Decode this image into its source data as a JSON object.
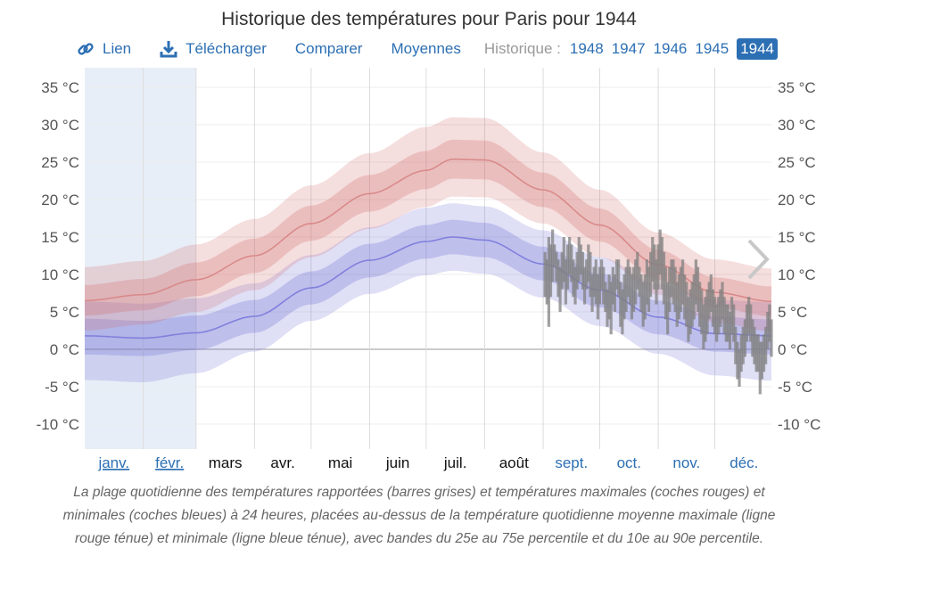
{
  "title": "Historique des températures pour Paris pour 1944",
  "toolbar": {
    "link_label": "Lien",
    "download_label": "Télécharger",
    "compare_label": "Comparer",
    "averages_label": "Moyennes",
    "history_label": "Historique :",
    "years": [
      "1948",
      "1947",
      "1946",
      "1945",
      "1944"
    ],
    "active_year": "1944"
  },
  "caption": "La plage quotidienne des températures rapportées (barres grises) et températures maximales (coches rouges) et minimales (coches bleues) à 24 heures, placées au-dessus de la température quotidienne moyenne maximale (ligne rouge ténue) et minimale (ligne bleue ténue), avec bandes du 25e au 75e percentile et du 10e au 90e percentile.",
  "colors": {
    "accent": "#2c6fb3",
    "high": "#d26b6b",
    "low": "#6c6cd4",
    "bar": "#808080",
    "winter_shade": "#e8eef7"
  },
  "chart_data": {
    "type": "area",
    "ylim": [
      -10,
      35
    ],
    "yticks": [
      35,
      30,
      25,
      20,
      15,
      10,
      5,
      0,
      -5,
      -10
    ],
    "y_unit": "°C",
    "months": [
      "janv.",
      "févr.",
      "mars",
      "avr.",
      "mai",
      "juin",
      "juil.",
      "août",
      "sept.",
      "oct.",
      "nov.",
      "déc."
    ],
    "month_links": [
      true,
      true,
      false,
      false,
      false,
      false,
      false,
      false,
      true,
      true,
      true,
      true
    ],
    "shaded_months": [
      "janv.",
      "févr."
    ],
    "normals_day": [
      1,
      32,
      60,
      91,
      121,
      152,
      182,
      196,
      213,
      244,
      274,
      305,
      335,
      365
    ],
    "high_avg": [
      6.5,
      7.3,
      9.3,
      12.5,
      16.8,
      20.8,
      23.9,
      25.4,
      25.3,
      21.3,
      16.6,
      11.3,
      7.6,
      6.4
    ],
    "high_p25": [
      4.5,
      5.2,
      7.1,
      10.2,
      14.5,
      18.4,
      21.4,
      22.8,
      22.7,
      19.0,
      14.4,
      9.3,
      5.6,
      4.4
    ],
    "high_p75": [
      8.6,
      9.4,
      11.6,
      14.8,
      19.2,
      23.3,
      26.5,
      28.0,
      27.9,
      23.6,
      18.8,
      13.3,
      9.6,
      8.4
    ],
    "high_p10": [
      2.5,
      3.3,
      5.0,
      7.9,
      12.3,
      16.1,
      19.0,
      20.4,
      20.3,
      16.8,
      12.3,
      7.3,
      3.6,
      2.4
    ],
    "high_p90": [
      11.0,
      11.8,
      14.0,
      17.4,
      21.9,
      26.2,
      29.7,
      31.0,
      30.9,
      26.3,
      21.3,
      15.6,
      12.0,
      10.8
    ],
    "low_avg": [
      1.8,
      1.5,
      2.2,
      4.4,
      8.2,
      11.9,
      14.4,
      15.0,
      14.6,
      11.4,
      7.9,
      4.3,
      2.1,
      1.8
    ],
    "low_p25": [
      -0.7,
      -0.9,
      -0.1,
      2.2,
      6.0,
      9.6,
      12.1,
      12.7,
      12.3,
      9.2,
      5.6,
      2.0,
      -0.3,
      -0.7
    ],
    "low_p75": [
      4.1,
      3.8,
      4.5,
      6.6,
      10.4,
      14.1,
      16.6,
      17.3,
      16.9,
      13.7,
      10.1,
      6.5,
      4.4,
      4.0
    ],
    "low_p10": [
      -4.1,
      -4.4,
      -3.2,
      -0.3,
      3.8,
      7.4,
      9.9,
      10.5,
      10.1,
      6.9,
      3.1,
      -0.6,
      -3.5,
      -4.2
    ],
    "low_p90": [
      6.4,
      6.1,
      6.8,
      8.8,
      12.6,
      16.3,
      18.9,
      19.5,
      19.1,
      15.9,
      12.3,
      8.7,
      6.6,
      6.3
    ],
    "daily_start_day": 245,
    "daily_low": [
      7,
      6,
      3,
      7,
      9,
      11,
      9,
      7,
      5,
      8,
      9,
      6,
      8,
      10,
      9,
      7,
      6,
      8,
      9,
      10,
      8,
      6,
      8,
      9,
      7,
      5,
      7,
      6,
      4,
      6,
      8,
      6,
      5,
      3,
      4,
      2,
      6,
      5,
      8,
      7,
      3,
      2,
      4,
      5,
      7,
      6,
      4,
      5,
      6,
      8,
      7,
      5,
      3,
      4,
      6,
      5,
      7,
      9,
      8,
      6,
      8,
      10,
      8,
      6,
      4,
      2,
      5,
      7,
      6,
      5,
      3,
      4,
      5,
      6,
      4,
      3,
      1,
      2,
      3,
      4,
      6,
      5,
      3,
      2,
      0,
      1,
      2,
      4,
      5,
      3,
      2,
      1,
      2,
      3,
      4,
      2,
      1,
      1,
      0,
      2,
      1,
      -2,
      -4,
      -5,
      -3,
      -2,
      -1,
      1,
      2,
      1,
      -1,
      -2,
      -3,
      -3,
      -6,
      -4,
      -3,
      -2,
      0,
      1,
      -1
    ],
    "daily_high": [
      13,
      12,
      15,
      14,
      16,
      14,
      13,
      12,
      11,
      13,
      15,
      12,
      14,
      15,
      14,
      12,
      11,
      13,
      15,
      14,
      13,
      11,
      12,
      14,
      13,
      10,
      11,
      12,
      10,
      11,
      12,
      11,
      9,
      8,
      10,
      9,
      11,
      10,
      12,
      12,
      9,
      8,
      10,
      11,
      12,
      11,
      10,
      11,
      12,
      13,
      11,
      10,
      9,
      10,
      12,
      11,
      13,
      15,
      14,
      12,
      14,
      16,
      15,
      13,
      11,
      9,
      11,
      12,
      12,
      11,
      9,
      10,
      11,
      12,
      10,
      9,
      7,
      8,
      9,
      10,
      12,
      11,
      9,
      8,
      6,
      7,
      8,
      9,
      10,
      8,
      7,
      6,
      7,
      8,
      9,
      7,
      6,
      6,
      5,
      7,
      6,
      3,
      1,
      0,
      2,
      3,
      4,
      6,
      7,
      6,
      4,
      3,
      2,
      2,
      1,
      1,
      2,
      3,
      5,
      6,
      4
    ]
  }
}
